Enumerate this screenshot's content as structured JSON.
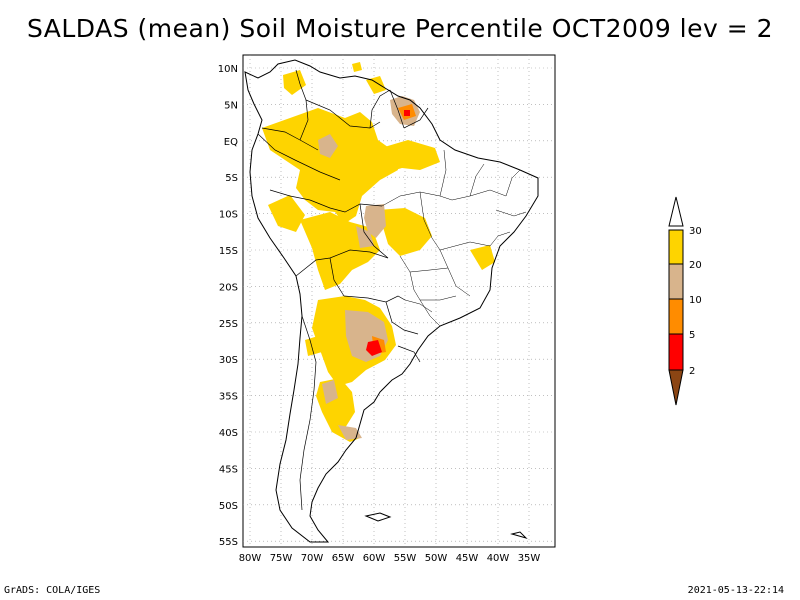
{
  "title": "SALDAS (mean) Soil Moisture Percentile OCT2009 lev = 2",
  "footer": {
    "left": "GrADS: COLA/IGES",
    "right": "2021-05-13-22:14"
  },
  "map": {
    "region": "South America",
    "lon_labels": [
      "80W",
      "75W",
      "70W",
      "65W",
      "60W",
      "55W",
      "50W",
      "45W",
      "40W",
      "35W"
    ],
    "lat_labels": [
      "10N",
      "5N",
      "EQ",
      "5S",
      "10S",
      "15S",
      "20S",
      "25S",
      "30S",
      "35S",
      "40S",
      "45S",
      "50S",
      "55S"
    ]
  },
  "legend": {
    "levels": [
      "30",
      "20",
      "10",
      "5",
      "2"
    ],
    "colors": {
      "above30": "#ffffff",
      "c20_30": "#fed400",
      "c10_20": "#d8b48c",
      "c5_10": "#ff8c00",
      "c2_5": "#ff0000",
      "below2": "#8b4513"
    }
  }
}
